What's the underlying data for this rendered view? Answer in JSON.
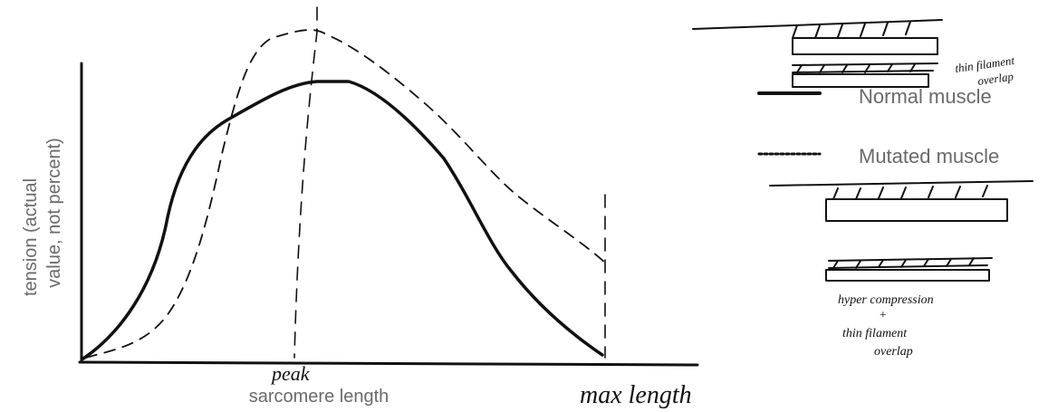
{
  "axes": {
    "y_label": [
      "tension (actual",
      "value, not percent)"
    ],
    "x_label": "sarcomere length"
  },
  "legend": [
    {
      "label": "Normal muscle"
    },
    {
      "label": "Mutated muscle"
    }
  ],
  "annotations": {
    "peak": "peak",
    "max_length": "max length",
    "top_diagram": [
      "thin filament",
      "overlap"
    ],
    "bottom_diagram": [
      "hyper compression",
      "+",
      "thin filament",
      "overlap"
    ]
  }
}
